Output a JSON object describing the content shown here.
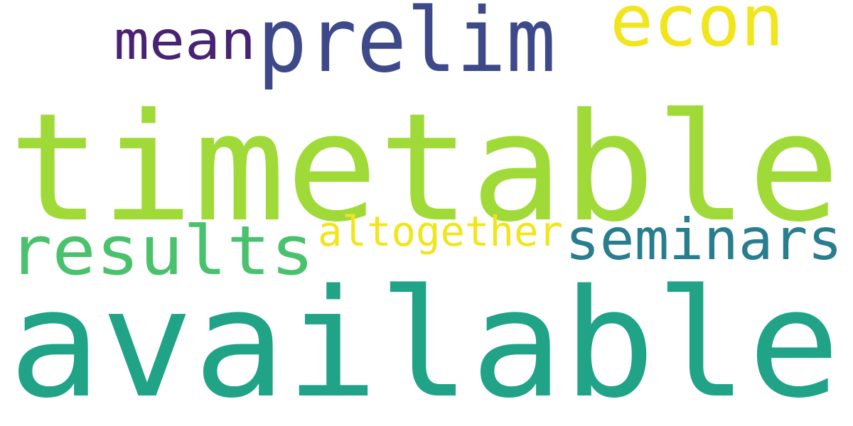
{
  "words": [
    {
      "text": "timetable",
      "color": "#a0da39"
    },
    {
      "text": "available",
      "color": "#20a386"
    },
    {
      "text": "prelim",
      "color": "#3e4989"
    },
    {
      "text": "econ",
      "color": "#f1e51d"
    },
    {
      "text": "mean",
      "color": "#482374"
    },
    {
      "text": "results",
      "color": "#4ac16d"
    },
    {
      "text": "altogether",
      "color": "#f1e51d"
    },
    {
      "text": "seminars",
      "color": "#287d8e"
    }
  ]
}
